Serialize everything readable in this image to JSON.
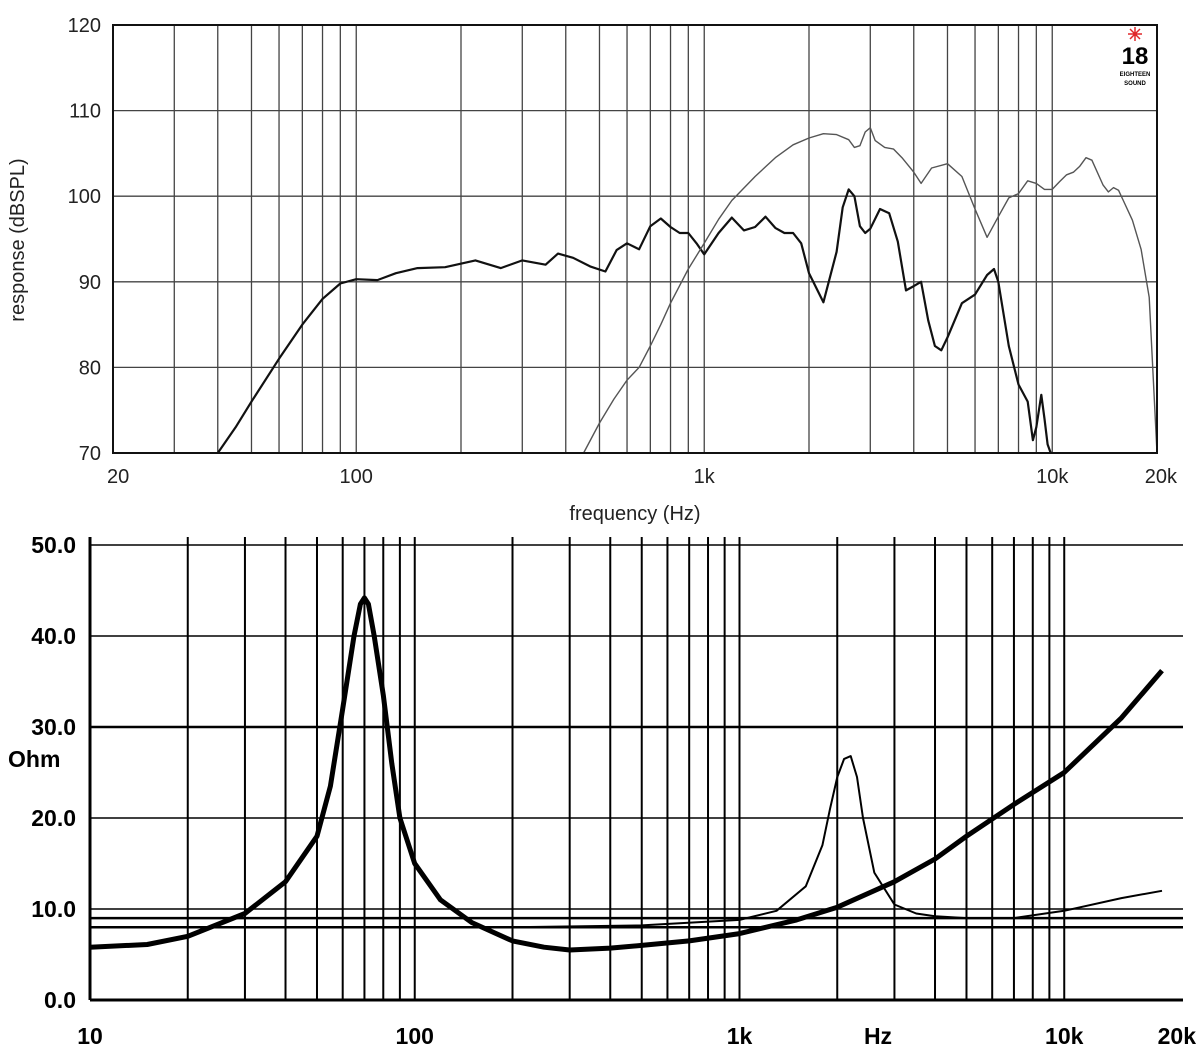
{
  "chart_data": [
    {
      "type": "line",
      "title": "",
      "xlabel": "frequency (Hz)",
      "ylabel": "response (dBSPL)",
      "xscale": "log",
      "xlim": [
        20,
        20000
      ],
      "ylim": [
        70,
        120
      ],
      "grid": true,
      "x_ticks": [
        {
          "value": 20,
          "label": "20"
        },
        {
          "value": 100,
          "label": "100"
        },
        {
          "value": 1000,
          "label": "1k"
        },
        {
          "value": 10000,
          "label": "10k"
        },
        {
          "value": 20000,
          "label": "20k"
        }
      ],
      "y_ticks": [
        {
          "value": 70,
          "label": "70"
        },
        {
          "value": 80,
          "label": "80"
        },
        {
          "value": 90,
          "label": "90"
        },
        {
          "value": 100,
          "label": "100"
        },
        {
          "value": 110,
          "label": "110"
        },
        {
          "value": 120,
          "label": "120"
        }
      ],
      "logo": {
        "number": "18",
        "subtext": [
          "EIGHTEEN",
          "SOUND"
        ],
        "star_color": "#e0282a"
      },
      "series": [
        {
          "style": "dark",
          "x": [
            40,
            45,
            50,
            60,
            70,
            80,
            90,
            100,
            115,
            130,
            150,
            180,
            220,
            260,
            300,
            350,
            380,
            420,
            470,
            520,
            560,
            600,
            650,
            700,
            750,
            800,
            850,
            900,
            950,
            1000,
            1100,
            1200,
            1300,
            1400,
            1500,
            1600,
            1700,
            1800,
            1900,
            2000,
            2200,
            2400,
            2500,
            2600,
            2700,
            2800,
            2900,
            3000,
            3200,
            3400,
            3600,
            3800,
            4000,
            4200,
            4400,
            4600,
            4800,
            5000,
            5500,
            6000,
            6500,
            6800,
            7000,
            7500,
            8000,
            8500,
            8800,
            9000,
            9300,
            9500,
            9700,
            9900
          ],
          "y": [
            70,
            73,
            76,
            81,
            85,
            88,
            89.8,
            90.3,
            90.2,
            91,
            91.6,
            91.7,
            92.5,
            91.6,
            92.5,
            92,
            93.3,
            92.8,
            91.8,
            91.2,
            93.7,
            94.5,
            93.8,
            96.5,
            97.4,
            96.4,
            95.7,
            95.7,
            94.5,
            93.2,
            95.7,
            97.5,
            96,
            96.4,
            97.6,
            96.3,
            95.7,
            95.7,
            94.5,
            91,
            87.6,
            93.5,
            98.7,
            100.8,
            100,
            96.5,
            95.7,
            96.2,
            98.5,
            98,
            94.7,
            89,
            89.5,
            90,
            85.5,
            82.5,
            82,
            83.5,
            87.5,
            88.5,
            90.8,
            91.5,
            90,
            82.5,
            78,
            76,
            71.5,
            73,
            76.8,
            74,
            71,
            70
          ]
        },
        {
          "style": "light",
          "x": [
            450,
            500,
            550,
            600,
            650,
            700,
            750,
            800,
            900,
            1000,
            1100,
            1200,
            1400,
            1600,
            1800,
            2000,
            2200,
            2400,
            2600,
            2700,
            2800,
            2900,
            3000,
            3100,
            3300,
            3500,
            3700,
            4000,
            4200,
            4500,
            5000,
            5500,
            6000,
            6500,
            7000,
            7500,
            8000,
            8500,
            9000,
            9500,
            10000,
            10500,
            11000,
            11500,
            12000,
            12500,
            13000,
            14000,
            14500,
            15000,
            15500,
            16000,
            17000,
            18000,
            19000,
            20000
          ],
          "y": [
            70,
            73.5,
            76.3,
            78.5,
            80,
            82.5,
            85,
            87.5,
            91.5,
            94.5,
            97.3,
            99.5,
            102.3,
            104.5,
            106,
            106.8,
            107.3,
            107.2,
            106.6,
            105.7,
            105.9,
            107.5,
            108,
            106.5,
            105.7,
            105.5,
            104.5,
            102.8,
            101.5,
            103.3,
            103.8,
            102.3,
            98.5,
            95.2,
            97.6,
            99.8,
            100.3,
            101.8,
            101.5,
            100.8,
            100.8,
            101.7,
            102.5,
            102.8,
            103.5,
            104.5,
            104.2,
            101.3,
            100.5,
            101,
            100.7,
            99.5,
            97.2,
            93.8,
            88.2,
            70
          ]
        }
      ]
    },
    {
      "type": "line",
      "title": "",
      "xlabel": "Hz",
      "ylabel": "Ohm",
      "xscale": "log",
      "xlim": [
        10,
        20000
      ],
      "ylim": [
        0,
        50
      ],
      "grid": true,
      "x_ticks": [
        {
          "value": 10,
          "label": "10"
        },
        {
          "value": 100,
          "label": "100"
        },
        {
          "value": 1000,
          "label": "1k"
        },
        {
          "value": 10000,
          "label": "10k"
        },
        {
          "value": 20000,
          "label": "20k"
        }
      ],
      "y_ticks": [
        {
          "value": 0,
          "label": "0.0"
        },
        {
          "value": 10,
          "label": "10.0"
        },
        {
          "value": 20,
          "label": "20.0"
        },
        {
          "value": 30,
          "label": "30.0"
        },
        {
          "value": 40,
          "label": "40.0"
        },
        {
          "value": 50,
          "label": "50.0"
        }
      ],
      "reference_lines": [
        9.0,
        8.0,
        30.0
      ],
      "series": [
        {
          "style": "thick",
          "x": [
            10,
            15,
            20,
            30,
            40,
            50,
            55,
            60,
            65,
            68,
            70,
            72,
            75,
            80,
            85,
            90,
            100,
            120,
            150,
            200,
            250,
            300,
            400,
            500,
            700,
            1000,
            1500,
            2000,
            3000,
            4000,
            5000,
            7000,
            10000,
            15000,
            20000
          ],
          "y": [
            5.8,
            6.1,
            7,
            9.5,
            13,
            18,
            23.5,
            32,
            40,
            43.5,
            44.2,
            43.5,
            40,
            33.5,
            26,
            20,
            15,
            11,
            8.5,
            6.5,
            5.8,
            5.5,
            5.7,
            6,
            6.5,
            7.3,
            8.8,
            10.2,
            13,
            15.5,
            18,
            21.5,
            25,
            31,
            36.2
          ]
        },
        {
          "style": "thin",
          "x": [
            10,
            100,
            200,
            500,
            1000,
            1300,
            1600,
            1800,
            1900,
            2000,
            2100,
            2200,
            2300,
            2400,
            2600,
            3000,
            3500,
            4000,
            5000,
            6000,
            7000,
            10000,
            15000,
            20000
          ],
          "y": [
            8.0,
            8.0,
            8.0,
            8.2,
            8.8,
            9.8,
            12.5,
            17,
            21,
            24.5,
            26.5,
            26.8,
            24.5,
            20,
            14,
            10.5,
            9.5,
            9.2,
            9.0,
            9.0,
            9.0,
            9.8,
            11.2,
            12
          ]
        }
      ]
    }
  ]
}
